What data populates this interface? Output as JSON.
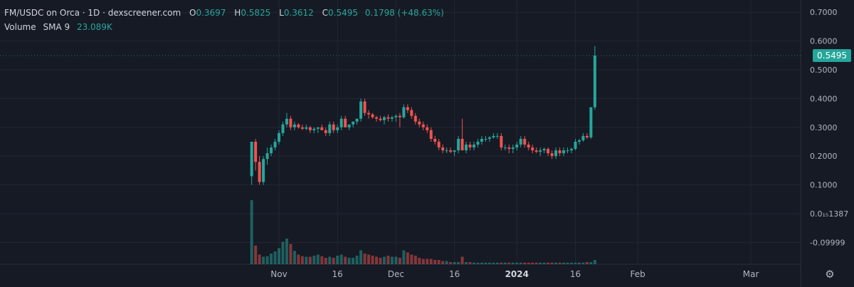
{
  "header": {
    "title": "FM/USDC on Orca · 1D · dexscreener.com",
    "ohlc": {
      "open_label": "O",
      "open": "0.3697",
      "high_label": "H",
      "high": "0.5825",
      "low_label": "L",
      "low": "0.3612",
      "close_label": "C",
      "close": "0.5495",
      "change": "0.1798 (+48.63%)"
    },
    "volume_label": "Volume",
    "sma_label": "SMA 9",
    "sma_value": "23.089K"
  },
  "last_price": "0.5495",
  "colors": {
    "background": "#161a25",
    "up": "#26a69a",
    "down": "#ef5350",
    "grid": "#232633",
    "text": "#b2b5be"
  },
  "icons": {
    "settings": "gear-icon"
  },
  "chart_data": {
    "type": "candlestick",
    "y_ticks": [
      "0.7000",
      "0.6000",
      "0.5000",
      "0.4000",
      "0.3000",
      "0.2000",
      "0.1000",
      "0.0₁₅1387",
      "-0.09999"
    ],
    "y_tick_values": [
      0.7,
      0.6,
      0.5,
      0.4,
      0.3,
      0.2,
      0.1,
      0,
      -0.1
    ],
    "x_ticks": [
      "Nov",
      "16",
      "Dec",
      "16",
      "2024",
      "16",
      "Feb",
      "Mar"
    ],
    "x_tick_dates": [
      "2023-11-01",
      "2023-11-16",
      "2023-12-01",
      "2023-12-16",
      "2024-01-01",
      "2024-01-16",
      "2024-02-01",
      "2024-03-01"
    ],
    "start_date": "2023-10-25",
    "candles": [
      [
        0.13,
        0.25,
        0.1,
        0.25
      ],
      [
        0.25,
        0.26,
        0.15,
        0.18
      ],
      [
        0.18,
        0.2,
        0.1,
        0.11
      ],
      [
        0.11,
        0.2,
        0.1,
        0.19
      ],
      [
        0.19,
        0.23,
        0.17,
        0.21
      ],
      [
        0.21,
        0.24,
        0.2,
        0.23
      ],
      [
        0.23,
        0.26,
        0.22,
        0.25
      ],
      [
        0.25,
        0.29,
        0.24,
        0.28
      ],
      [
        0.28,
        0.32,
        0.27,
        0.31
      ],
      [
        0.31,
        0.35,
        0.3,
        0.33
      ],
      [
        0.33,
        0.34,
        0.29,
        0.3
      ],
      [
        0.3,
        0.32,
        0.29,
        0.31
      ],
      [
        0.31,
        0.315,
        0.295,
        0.3
      ],
      [
        0.3,
        0.31,
        0.29,
        0.295
      ],
      [
        0.295,
        0.31,
        0.29,
        0.3
      ],
      [
        0.3,
        0.305,
        0.28,
        0.29
      ],
      [
        0.29,
        0.3,
        0.28,
        0.295
      ],
      [
        0.295,
        0.3,
        0.28,
        0.3
      ],
      [
        0.3,
        0.31,
        0.29,
        0.29
      ],
      [
        0.29,
        0.3,
        0.27,
        0.28
      ],
      [
        0.28,
        0.32,
        0.27,
        0.31
      ],
      [
        0.31,
        0.32,
        0.28,
        0.29
      ],
      [
        0.29,
        0.31,
        0.28,
        0.3
      ],
      [
        0.3,
        0.34,
        0.29,
        0.33
      ],
      [
        0.33,
        0.34,
        0.3,
        0.3
      ],
      [
        0.3,
        0.31,
        0.29,
        0.31
      ],
      [
        0.31,
        0.32,
        0.3,
        0.32
      ],
      [
        0.32,
        0.33,
        0.31,
        0.33
      ],
      [
        0.33,
        0.4,
        0.32,
        0.39
      ],
      [
        0.39,
        0.4,
        0.34,
        0.35
      ],
      [
        0.35,
        0.36,
        0.33,
        0.345
      ],
      [
        0.345,
        0.35,
        0.33,
        0.335
      ],
      [
        0.335,
        0.34,
        0.32,
        0.33
      ],
      [
        0.33,
        0.34,
        0.32,
        0.325
      ],
      [
        0.325,
        0.34,
        0.31,
        0.335
      ],
      [
        0.335,
        0.345,
        0.32,
        0.33
      ],
      [
        0.33,
        0.34,
        0.32,
        0.335
      ],
      [
        0.335,
        0.345,
        0.32,
        0.34
      ],
      [
        0.34,
        0.35,
        0.3,
        0.335
      ],
      [
        0.335,
        0.38,
        0.33,
        0.37
      ],
      [
        0.37,
        0.38,
        0.35,
        0.36
      ],
      [
        0.36,
        0.37,
        0.33,
        0.34
      ],
      [
        0.34,
        0.35,
        0.31,
        0.32
      ],
      [
        0.32,
        0.33,
        0.3,
        0.31
      ],
      [
        0.31,
        0.32,
        0.29,
        0.3
      ],
      [
        0.3,
        0.31,
        0.28,
        0.29
      ],
      [
        0.29,
        0.3,
        0.25,
        0.26
      ],
      [
        0.26,
        0.27,
        0.24,
        0.25
      ],
      [
        0.25,
        0.26,
        0.22,
        0.23
      ],
      [
        0.23,
        0.24,
        0.21,
        0.22
      ],
      [
        0.22,
        0.23,
        0.21,
        0.22
      ],
      [
        0.22,
        0.23,
        0.21,
        0.215
      ],
      [
        0.215,
        0.22,
        0.2,
        0.22
      ],
      [
        0.22,
        0.27,
        0.21,
        0.26
      ],
      [
        0.26,
        0.33,
        0.22,
        0.22
      ],
      [
        0.22,
        0.25,
        0.21,
        0.24
      ],
      [
        0.24,
        0.25,
        0.22,
        0.23
      ],
      [
        0.23,
        0.25,
        0.22,
        0.24
      ],
      [
        0.24,
        0.26,
        0.23,
        0.25
      ],
      [
        0.25,
        0.27,
        0.24,
        0.26
      ],
      [
        0.26,
        0.27,
        0.25,
        0.26
      ],
      [
        0.26,
        0.27,
        0.25,
        0.265
      ],
      [
        0.265,
        0.28,
        0.26,
        0.27
      ],
      [
        0.27,
        0.28,
        0.26,
        0.27
      ],
      [
        0.27,
        0.28,
        0.22,
        0.23
      ],
      [
        0.23,
        0.24,
        0.22,
        0.23
      ],
      [
        0.23,
        0.24,
        0.21,
        0.225
      ],
      [
        0.225,
        0.24,
        0.21,
        0.23
      ],
      [
        0.23,
        0.25,
        0.22,
        0.24
      ],
      [
        0.24,
        0.27,
        0.23,
        0.26
      ],
      [
        0.26,
        0.27,
        0.23,
        0.24
      ],
      [
        0.24,
        0.25,
        0.22,
        0.23
      ],
      [
        0.23,
        0.24,
        0.21,
        0.22
      ],
      [
        0.22,
        0.23,
        0.21,
        0.215
      ],
      [
        0.215,
        0.23,
        0.2,
        0.22
      ],
      [
        0.22,
        0.23,
        0.21,
        0.225
      ],
      [
        0.225,
        0.23,
        0.2,
        0.21
      ],
      [
        0.21,
        0.22,
        0.19,
        0.2
      ],
      [
        0.2,
        0.23,
        0.19,
        0.22
      ],
      [
        0.22,
        0.23,
        0.2,
        0.21
      ],
      [
        0.21,
        0.23,
        0.2,
        0.22
      ],
      [
        0.22,
        0.23,
        0.21,
        0.22
      ],
      [
        0.22,
        0.23,
        0.21,
        0.225
      ],
      [
        0.225,
        0.26,
        0.22,
        0.25
      ],
      [
        0.25,
        0.26,
        0.24,
        0.255
      ],
      [
        0.255,
        0.28,
        0.25,
        0.27
      ],
      [
        0.27,
        0.28,
        0.26,
        0.265
      ],
      [
        0.265,
        0.37,
        0.26,
        0.37
      ],
      [
        0.3697,
        0.5825,
        0.3612,
        0.5495
      ]
    ],
    "volumes": [
      120,
      35,
      18,
      14,
      15,
      20,
      24,
      30,
      42,
      48,
      38,
      25,
      18,
      15,
      14,
      14,
      16,
      18,
      15,
      12,
      14,
      12,
      16,
      18,
      14,
      12,
      12,
      16,
      26,
      20,
      18,
      16,
      14,
      12,
      14,
      16,
      14,
      14,
      12,
      26,
      22,
      18,
      16,
      12,
      10,
      10,
      10,
      8,
      8,
      6,
      6,
      4,
      4,
      4,
      14,
      4,
      4,
      3,
      3,
      3,
      3,
      3,
      3,
      3,
      3,
      3,
      3,
      3,
      3,
      3,
      3,
      3,
      3,
      3,
      3,
      3,
      3,
      3,
      3,
      3,
      3,
      3,
      3,
      3,
      3,
      3,
      4,
      4,
      8
    ]
  }
}
